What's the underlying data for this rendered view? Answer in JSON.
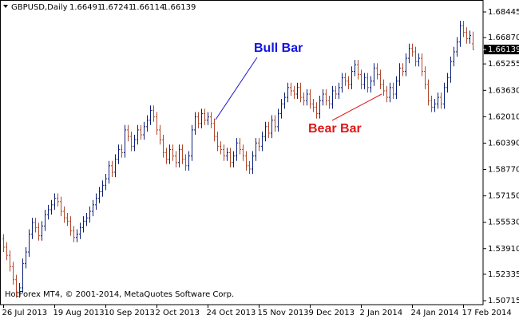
{
  "chart_data": {
    "type": "ohlc",
    "symbol": "GBPUSD,Daily",
    "footer": "HotForex MT4, © 2001-2014, MetaQuotes Software Corp.",
    "bull_color": "#0c1f78",
    "bear_color": "#b0472c",
    "annotations": [
      {
        "text": "Bull Bar",
        "color": "#1414e0"
      },
      {
        "text": "Bear Bar",
        "color": "#e01818"
      }
    ],
    "ylim": [
      1.5047,
      1.6918
    ],
    "yticks": [
      1.68445,
      {
        "value": 1.6687,
        "label": "1.66870"
      },
      1.65255,
      {
        "value": 1.6363,
        "label": "1.63630"
      },
      {
        "value": 1.6201,
        "label": "1.62010"
      },
      {
        "value": 1.6039,
        "label": "1.60390"
      },
      {
        "value": 1.5877,
        "label": "1.58770"
      },
      {
        "value": 1.5715,
        "label": "1.57150"
      },
      {
        "value": 1.5553,
        "label": "1.55530"
      },
      {
        "value": 1.5391,
        "label": "1.53910"
      },
      1.52335,
      1.50715
    ],
    "categories": [
      "26 Jul 2013",
      null,
      null,
      null,
      null,
      null,
      null,
      null,
      null,
      null,
      null,
      null,
      null,
      null,
      null,
      null,
      "19 Aug 2013",
      null,
      null,
      null,
      null,
      null,
      null,
      null,
      null,
      null,
      null,
      null,
      null,
      null,
      null,
      null,
      "10 Sep 2013",
      null,
      null,
      null,
      null,
      null,
      null,
      null,
      null,
      null,
      null,
      null,
      null,
      null,
      null,
      null,
      "2 Oct 2013",
      null,
      null,
      null,
      null,
      null,
      null,
      null,
      null,
      null,
      null,
      null,
      null,
      null,
      null,
      null,
      "24 Oct 2013",
      null,
      null,
      null,
      null,
      null,
      null,
      null,
      null,
      null,
      null,
      null,
      null,
      null,
      null,
      null,
      "15 Nov 2013",
      null,
      null,
      null,
      null,
      null,
      null,
      null,
      null,
      null,
      null,
      null,
      null,
      null,
      null,
      null,
      "9 Dec 2013",
      null,
      null,
      null,
      null,
      null,
      null,
      null,
      null,
      null,
      null,
      null,
      null,
      null,
      null,
      null,
      "2 Jan 2014",
      null,
      null,
      null,
      null,
      null,
      null,
      null,
      null,
      null,
      null,
      null,
      null,
      null,
      null,
      null,
      "24 Jan 2014",
      null,
      null,
      null,
      null,
      null,
      null,
      null,
      null,
      null,
      null,
      null,
      null,
      null,
      null,
      null,
      "17 Feb 2014",
      null,
      null,
      null
    ],
    "open": [
      1.545,
      1.54,
      1.535,
      1.528,
      1.52,
      1.512,
      1.515,
      1.53,
      1.537,
      1.548,
      1.555,
      1.552,
      1.547,
      1.553,
      1.56,
      1.563,
      1.566,
      1.57,
      1.568,
      1.562,
      1.558,
      1.556,
      1.55,
      1.546,
      1.548,
      1.552,
      1.556,
      1.558,
      1.562,
      1.566,
      1.57,
      1.574,
      1.578,
      1.582,
      1.59,
      1.586,
      1.594,
      1.6,
      1.598,
      1.612,
      1.608,
      1.602,
      1.606,
      1.612,
      1.609,
      1.614,
      1.618,
      1.624,
      1.62,
      1.612,
      1.606,
      1.598,
      1.594,
      1.6,
      1.596,
      1.592,
      1.6,
      1.594,
      1.59,
      1.596,
      1.612,
      1.62,
      1.616,
      1.622,
      1.618,
      1.62,
      1.616,
      1.608,
      1.602,
      1.6,
      1.596,
      1.598,
      1.592,
      1.596,
      1.604,
      1.6,
      1.596,
      1.59,
      1.588,
      1.596,
      1.604,
      1.602,
      1.608,
      1.614,
      1.61,
      1.618,
      1.614,
      1.622,
      1.628,
      1.632,
      1.638,
      1.636,
      1.634,
      1.638,
      1.632,
      1.63,
      1.634,
      1.628,
      1.626,
      1.622,
      1.63,
      1.634,
      1.63,
      1.628,
      1.636,
      1.634,
      1.638,
      1.644,
      1.642,
      1.64,
      1.648,
      1.652,
      1.646,
      1.64,
      1.644,
      1.638,
      1.642,
      1.65,
      1.646,
      1.64,
      1.636,
      1.632,
      1.638,
      1.634,
      1.642,
      1.65,
      1.648,
      1.656,
      1.662,
      1.66,
      1.654,
      1.656,
      1.648,
      1.64,
      1.63,
      1.626,
      1.628,
      1.632,
      1.628,
      1.638,
      1.644,
      1.654,
      1.66,
      1.666,
      1.676,
      1.672,
      1.668,
      1.66491
    ],
    "high": [
      1.548,
      1.543,
      1.538,
      1.531,
      1.523,
      1.518,
      1.533,
      1.54,
      1.551,
      1.558,
      1.558,
      1.555,
      1.556,
      1.563,
      1.566,
      1.569,
      1.573,
      1.573,
      1.571,
      1.565,
      1.561,
      1.559,
      1.553,
      1.551,
      1.555,
      1.559,
      1.561,
      1.565,
      1.569,
      1.573,
      1.577,
      1.581,
      1.585,
      1.593,
      1.593,
      1.597,
      1.603,
      1.603,
      1.615,
      1.615,
      1.611,
      1.609,
      1.615,
      1.615,
      1.617,
      1.621,
      1.627,
      1.627,
      1.623,
      1.615,
      1.609,
      1.601,
      1.603,
      1.603,
      1.599,
      1.603,
      1.603,
      1.597,
      1.599,
      1.615,
      1.623,
      1.623,
      1.625,
      1.625,
      1.623,
      1.623,
      1.619,
      1.611,
      1.605,
      1.603,
      1.601,
      1.601,
      1.599,
      1.607,
      1.607,
      1.603,
      1.599,
      1.593,
      1.599,
      1.607,
      1.607,
      1.611,
      1.617,
      1.617,
      1.621,
      1.621,
      1.625,
      1.631,
      1.635,
      1.641,
      1.641,
      1.639,
      1.641,
      1.641,
      1.635,
      1.637,
      1.637,
      1.631,
      1.629,
      1.633,
      1.637,
      1.637,
      1.633,
      1.639,
      1.639,
      1.641,
      1.647,
      1.647,
      1.645,
      1.651,
      1.655,
      1.655,
      1.649,
      1.647,
      1.647,
      1.645,
      1.653,
      1.653,
      1.649,
      1.643,
      1.639,
      1.641,
      1.641,
      1.645,
      1.653,
      1.653,
      1.659,
      1.665,
      1.665,
      1.663,
      1.659,
      1.659,
      1.651,
      1.643,
      1.633,
      1.631,
      1.635,
      1.635,
      1.641,
      1.647,
      1.657,
      1.663,
      1.669,
      1.679,
      1.679,
      1.675,
      1.673,
      1.67241
    ],
    "low": [
      1.537,
      1.532,
      1.525,
      1.517,
      1.509,
      1.509,
      1.512,
      1.527,
      1.534,
      1.545,
      1.549,
      1.544,
      1.544,
      1.55,
      1.557,
      1.56,
      1.563,
      1.565,
      1.559,
      1.555,
      1.553,
      1.547,
      1.543,
      1.543,
      1.545,
      1.549,
      1.553,
      1.555,
      1.559,
      1.563,
      1.567,
      1.571,
      1.575,
      1.579,
      1.583,
      1.583,
      1.591,
      1.595,
      1.595,
      1.605,
      1.599,
      1.599,
      1.603,
      1.606,
      1.606,
      1.611,
      1.615,
      1.617,
      1.609,
      1.603,
      1.595,
      1.591,
      1.591,
      1.593,
      1.589,
      1.589,
      1.591,
      1.587,
      1.587,
      1.593,
      1.609,
      1.613,
      1.613,
      1.615,
      1.615,
      1.613,
      1.605,
      1.599,
      1.597,
      1.593,
      1.593,
      1.589,
      1.589,
      1.593,
      1.597,
      1.593,
      1.587,
      1.585,
      1.585,
      1.593,
      1.599,
      1.599,
      1.605,
      1.607,
      1.607,
      1.611,
      1.611,
      1.619,
      1.625,
      1.629,
      1.633,
      1.631,
      1.631,
      1.629,
      1.627,
      1.627,
      1.625,
      1.623,
      1.619,
      1.619,
      1.627,
      1.627,
      1.625,
      1.625,
      1.631,
      1.631,
      1.635,
      1.639,
      1.637,
      1.637,
      1.645,
      1.643,
      1.637,
      1.637,
      1.635,
      1.635,
      1.639,
      1.643,
      1.637,
      1.633,
      1.629,
      1.629,
      1.631,
      1.631,
      1.639,
      1.645,
      1.645,
      1.653,
      1.657,
      1.651,
      1.651,
      1.645,
      1.637,
      1.627,
      1.623,
      1.623,
      1.625,
      1.625,
      1.625,
      1.635,
      1.641,
      1.651,
      1.657,
      1.663,
      1.669,
      1.665,
      1.665,
      1.66114
    ],
    "close": [
      1.54,
      1.535,
      1.528,
      1.52,
      1.512,
      1.515,
      1.53,
      1.537,
      1.548,
      1.555,
      1.552,
      1.547,
      1.553,
      1.56,
      1.563,
      1.566,
      1.57,
      1.568,
      1.562,
      1.558,
      1.556,
      1.55,
      1.546,
      1.548,
      1.552,
      1.556,
      1.558,
      1.562,
      1.566,
      1.57,
      1.574,
      1.578,
      1.582,
      1.59,
      1.586,
      1.594,
      1.6,
      1.598,
      1.612,
      1.608,
      1.602,
      1.606,
      1.612,
      1.609,
      1.614,
      1.618,
      1.624,
      1.62,
      1.612,
      1.606,
      1.598,
      1.594,
      1.6,
      1.596,
      1.592,
      1.6,
      1.594,
      1.59,
      1.596,
      1.612,
      1.62,
      1.616,
      1.622,
      1.618,
      1.62,
      1.616,
      1.608,
      1.602,
      1.6,
      1.596,
      1.598,
      1.592,
      1.596,
      1.604,
      1.6,
      1.596,
      1.59,
      1.588,
      1.596,
      1.604,
      1.602,
      1.608,
      1.614,
      1.61,
      1.618,
      1.614,
      1.622,
      1.628,
      1.632,
      1.638,
      1.636,
      1.634,
      1.638,
      1.632,
      1.63,
      1.634,
      1.628,
      1.626,
      1.622,
      1.63,
      1.634,
      1.63,
      1.628,
      1.636,
      1.634,
      1.638,
      1.644,
      1.642,
      1.64,
      1.648,
      1.652,
      1.646,
      1.64,
      1.644,
      1.638,
      1.642,
      1.65,
      1.646,
      1.64,
      1.636,
      1.632,
      1.638,
      1.634,
      1.642,
      1.65,
      1.648,
      1.656,
      1.662,
      1.66,
      1.654,
      1.656,
      1.648,
      1.64,
      1.63,
      1.626,
      1.628,
      1.632,
      1.628,
      1.638,
      1.644,
      1.654,
      1.66,
      1.666,
      1.676,
      1.672,
      1.668,
      1.67,
      1.66139
    ]
  }
}
